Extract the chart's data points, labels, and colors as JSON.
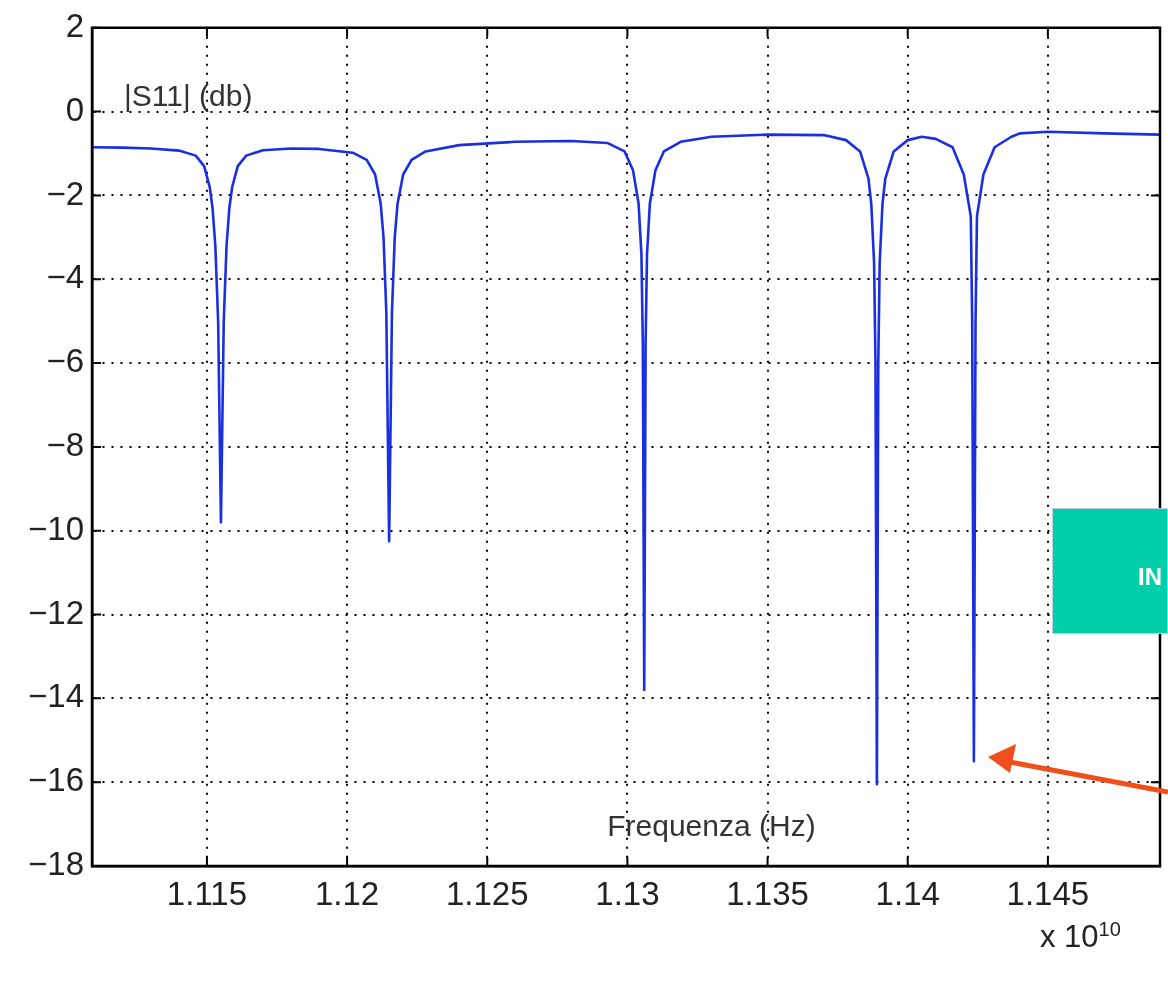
{
  "chart_data": {
    "type": "line",
    "xlabel": "Frequenza (Hz)",
    "ylabel": "|S11| (db)",
    "annotations": [
      "x 10$^{10}$",
      "IN"
    ],
    "x": [
      1.1109,
      1.112,
      1.113,
      1.114,
      1.1146,
      1.1149,
      1.1151,
      1.1152,
      1.1153,
      1.1154,
      1.1155,
      1.1156,
      1.1157,
      1.1158,
      1.1159,
      1.1161,
      1.1164,
      1.117,
      1.118,
      1.119,
      1.1202,
      1.1207,
      1.121,
      1.1212,
      1.1213,
      1.1214,
      1.1215,
      1.1216,
      1.1217,
      1.1218,
      1.122,
      1.1223,
      1.1228,
      1.124,
      1.126,
      1.128,
      1.1293,
      1.1299,
      1.1302,
      1.1304,
      1.1305,
      1.13055,
      1.1306,
      1.13065,
      1.1307,
      1.1308,
      1.131,
      1.1313,
      1.1319,
      1.133,
      1.135,
      1.137,
      1.1378,
      1.1383,
      1.1386,
      1.1387,
      1.1388,
      1.13885,
      1.1389,
      1.13895,
      1.139,
      1.1391,
      1.1392,
      1.1395,
      1.14,
      1.1405,
      1.141,
      1.1416,
      1.142,
      1.14225,
      1.1423,
      1.14236,
      1.14242,
      1.14247,
      1.1427,
      1.1431,
      1.1437,
      1.144,
      1.145,
      1.147,
      1.149
    ],
    "series": [
      {
        "color": "#1a2fe0",
        "values": [
          -0.85,
          -0.86,
          -0.88,
          -0.93,
          -1.05,
          -1.3,
          -1.8,
          -2.3,
          -3.2,
          -5.0,
          -9.8,
          -5.0,
          -3.2,
          -2.3,
          -1.8,
          -1.3,
          -1.05,
          -0.92,
          -0.88,
          -0.89,
          -0.98,
          -1.15,
          -1.5,
          -2.2,
          -3.0,
          -4.8,
          -10.25,
          -4.8,
          -3.0,
          -2.2,
          -1.5,
          -1.15,
          -0.95,
          -0.8,
          -0.72,
          -0.7,
          -0.75,
          -0.95,
          -1.4,
          -2.2,
          -3.4,
          -5.5,
          -13.8,
          -5.5,
          -3.4,
          -2.2,
          -1.4,
          -0.95,
          -0.72,
          -0.6,
          -0.55,
          -0.56,
          -0.68,
          -0.95,
          -1.6,
          -2.2,
          -3.6,
          -6,
          -16.05,
          -6,
          -3.6,
          -2.2,
          -1.6,
          -0.95,
          -0.68,
          -0.6,
          -0.65,
          -0.85,
          -1.5,
          -2.5,
          -5,
          -15.5,
          -5,
          -2.5,
          -1.5,
          -0.85,
          -0.6,
          -0.52,
          -0.48,
          -0.52,
          -0.55
        ]
      }
    ],
    "xlim": [
      1.1109,
      1.149
    ],
    "xticks": [
      1.115,
      1.12,
      1.125,
      1.13,
      1.135,
      1.14,
      1.145
    ],
    "ylim": [
      -18,
      2
    ],
    "yticks": [
      -18,
      -16,
      -14,
      -12,
      -10,
      -8,
      -6,
      -4,
      -2,
      0,
      2
    ],
    "grid": true
  }
}
